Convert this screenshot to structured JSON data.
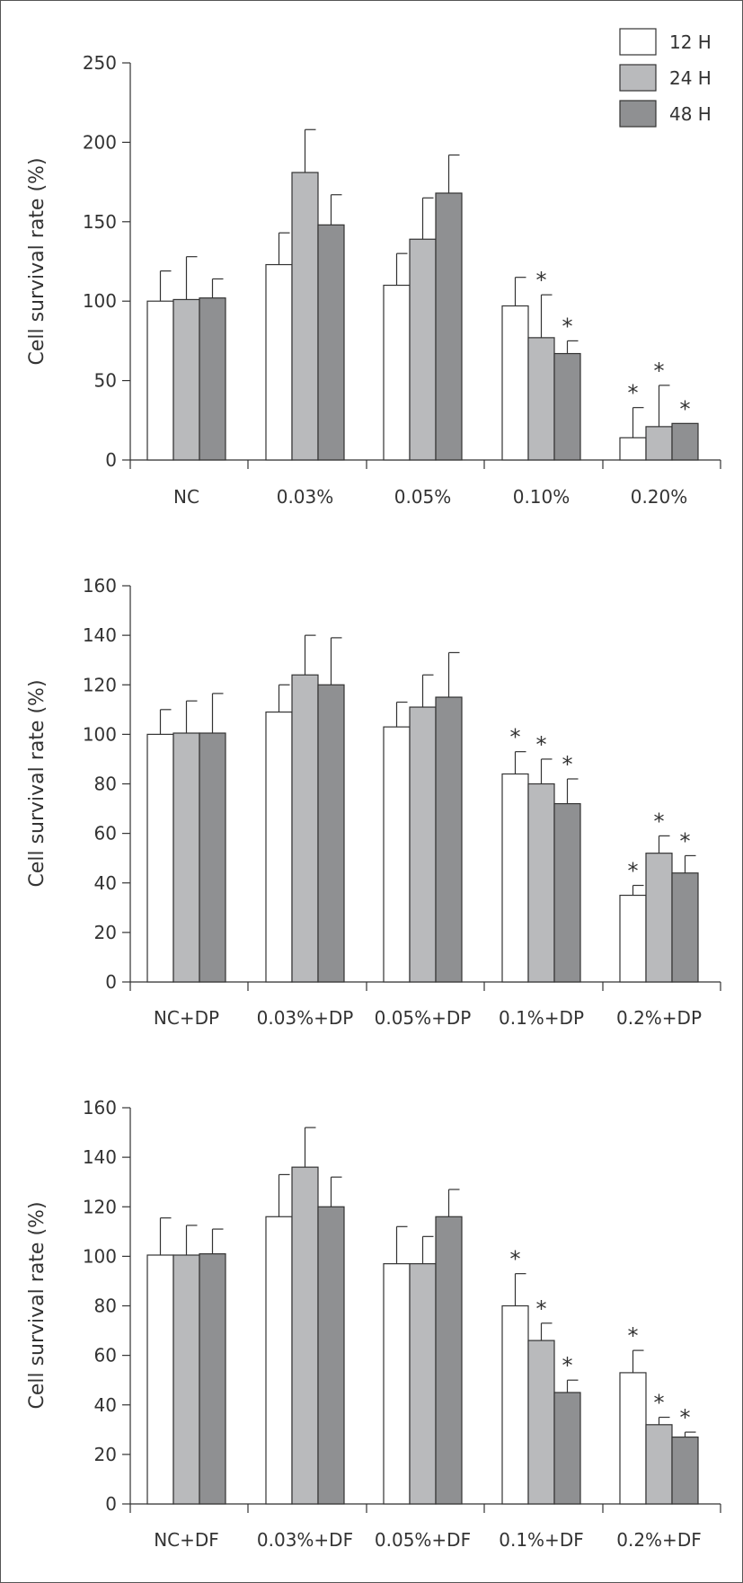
{
  "legend": {
    "position": "top-right",
    "items": [
      {
        "name": "12 H",
        "color": "#ffffff"
      },
      {
        "name": "24 H",
        "color": "#b9babc"
      },
      {
        "name": "48 H",
        "color": "#8f9092"
      }
    ]
  },
  "chart_data": [
    {
      "type": "bar",
      "title": "",
      "xlabel": "",
      "ylabel": "Cell survival rate (%)",
      "ylim": [
        0,
        250
      ],
      "yticks": [
        0,
        50,
        100,
        150,
        200,
        250
      ],
      "grid": false,
      "categories": [
        "NC",
        "0.03%",
        "0.05%",
        "0.10%",
        "0.20%"
      ],
      "series": [
        {
          "name": "12 H",
          "values": [
            100,
            123,
            110,
            97,
            14
          ],
          "errors": [
            19,
            20,
            20,
            18,
            19
          ],
          "significant": [
            false,
            false,
            false,
            false,
            true
          ]
        },
        {
          "name": "24 H",
          "values": [
            101,
            181,
            139,
            77,
            21
          ],
          "errors": [
            27,
            27,
            26,
            27,
            26
          ],
          "significant": [
            false,
            false,
            false,
            true,
            true
          ]
        },
        {
          "name": "48 H",
          "values": [
            102,
            148,
            168,
            67,
            23
          ],
          "errors": [
            12,
            19,
            24,
            8,
            0
          ],
          "significant": [
            false,
            false,
            false,
            true,
            true
          ]
        }
      ]
    },
    {
      "type": "bar",
      "title": "",
      "xlabel": "",
      "ylabel": "Cell survival rate (%)",
      "ylim": [
        0,
        160
      ],
      "yticks": [
        0,
        20,
        40,
        60,
        80,
        100,
        120,
        140,
        160
      ],
      "grid": false,
      "categories": [
        "NC+DP",
        "0.03%+DP",
        "0.05%+DP",
        "0.1%+DP",
        "0.2%+DP"
      ],
      "series": [
        {
          "name": "12 H",
          "values": [
            100,
            109,
            103,
            84,
            35
          ],
          "errors": [
            10,
            11,
            10,
            9,
            4
          ],
          "significant": [
            false,
            false,
            false,
            true,
            true
          ]
        },
        {
          "name": "24 H",
          "values": [
            100.5,
            124,
            111,
            80,
            52
          ],
          "errors": [
            13,
            16,
            13,
            10,
            7
          ],
          "significant": [
            false,
            false,
            false,
            true,
            true
          ]
        },
        {
          "name": "48 H",
          "values": [
            100.5,
            120,
            115,
            72,
            44
          ],
          "errors": [
            16,
            19,
            18,
            10,
            7
          ],
          "significant": [
            false,
            false,
            false,
            true,
            true
          ]
        }
      ]
    },
    {
      "type": "bar",
      "title": "",
      "xlabel": "",
      "ylabel": "Cell survival rate (%)",
      "ylim": [
        0,
        160
      ],
      "yticks": [
        0,
        20,
        40,
        60,
        80,
        100,
        120,
        140,
        160
      ],
      "grid": false,
      "categories": [
        "NC+DF",
        "0.03%+DF",
        "0.05%+DF",
        "0.1%+DF",
        "0.2%+DF"
      ],
      "series": [
        {
          "name": "12 H",
          "values": [
            100.5,
            116,
            97,
            80,
            53
          ],
          "errors": [
            15,
            17,
            15,
            13,
            9
          ],
          "significant": [
            false,
            false,
            false,
            true,
            true
          ]
        },
        {
          "name": "24 H",
          "values": [
            100.5,
            136,
            97,
            66,
            32
          ],
          "errors": [
            12,
            16,
            11,
            7,
            3
          ],
          "significant": [
            false,
            false,
            false,
            true,
            true
          ]
        },
        {
          "name": "48 H",
          "values": [
            101,
            120,
            116,
            45,
            27
          ],
          "errors": [
            10,
            12,
            11,
            5,
            2
          ],
          "significant": [
            false,
            false,
            false,
            true,
            true
          ]
        }
      ]
    }
  ]
}
